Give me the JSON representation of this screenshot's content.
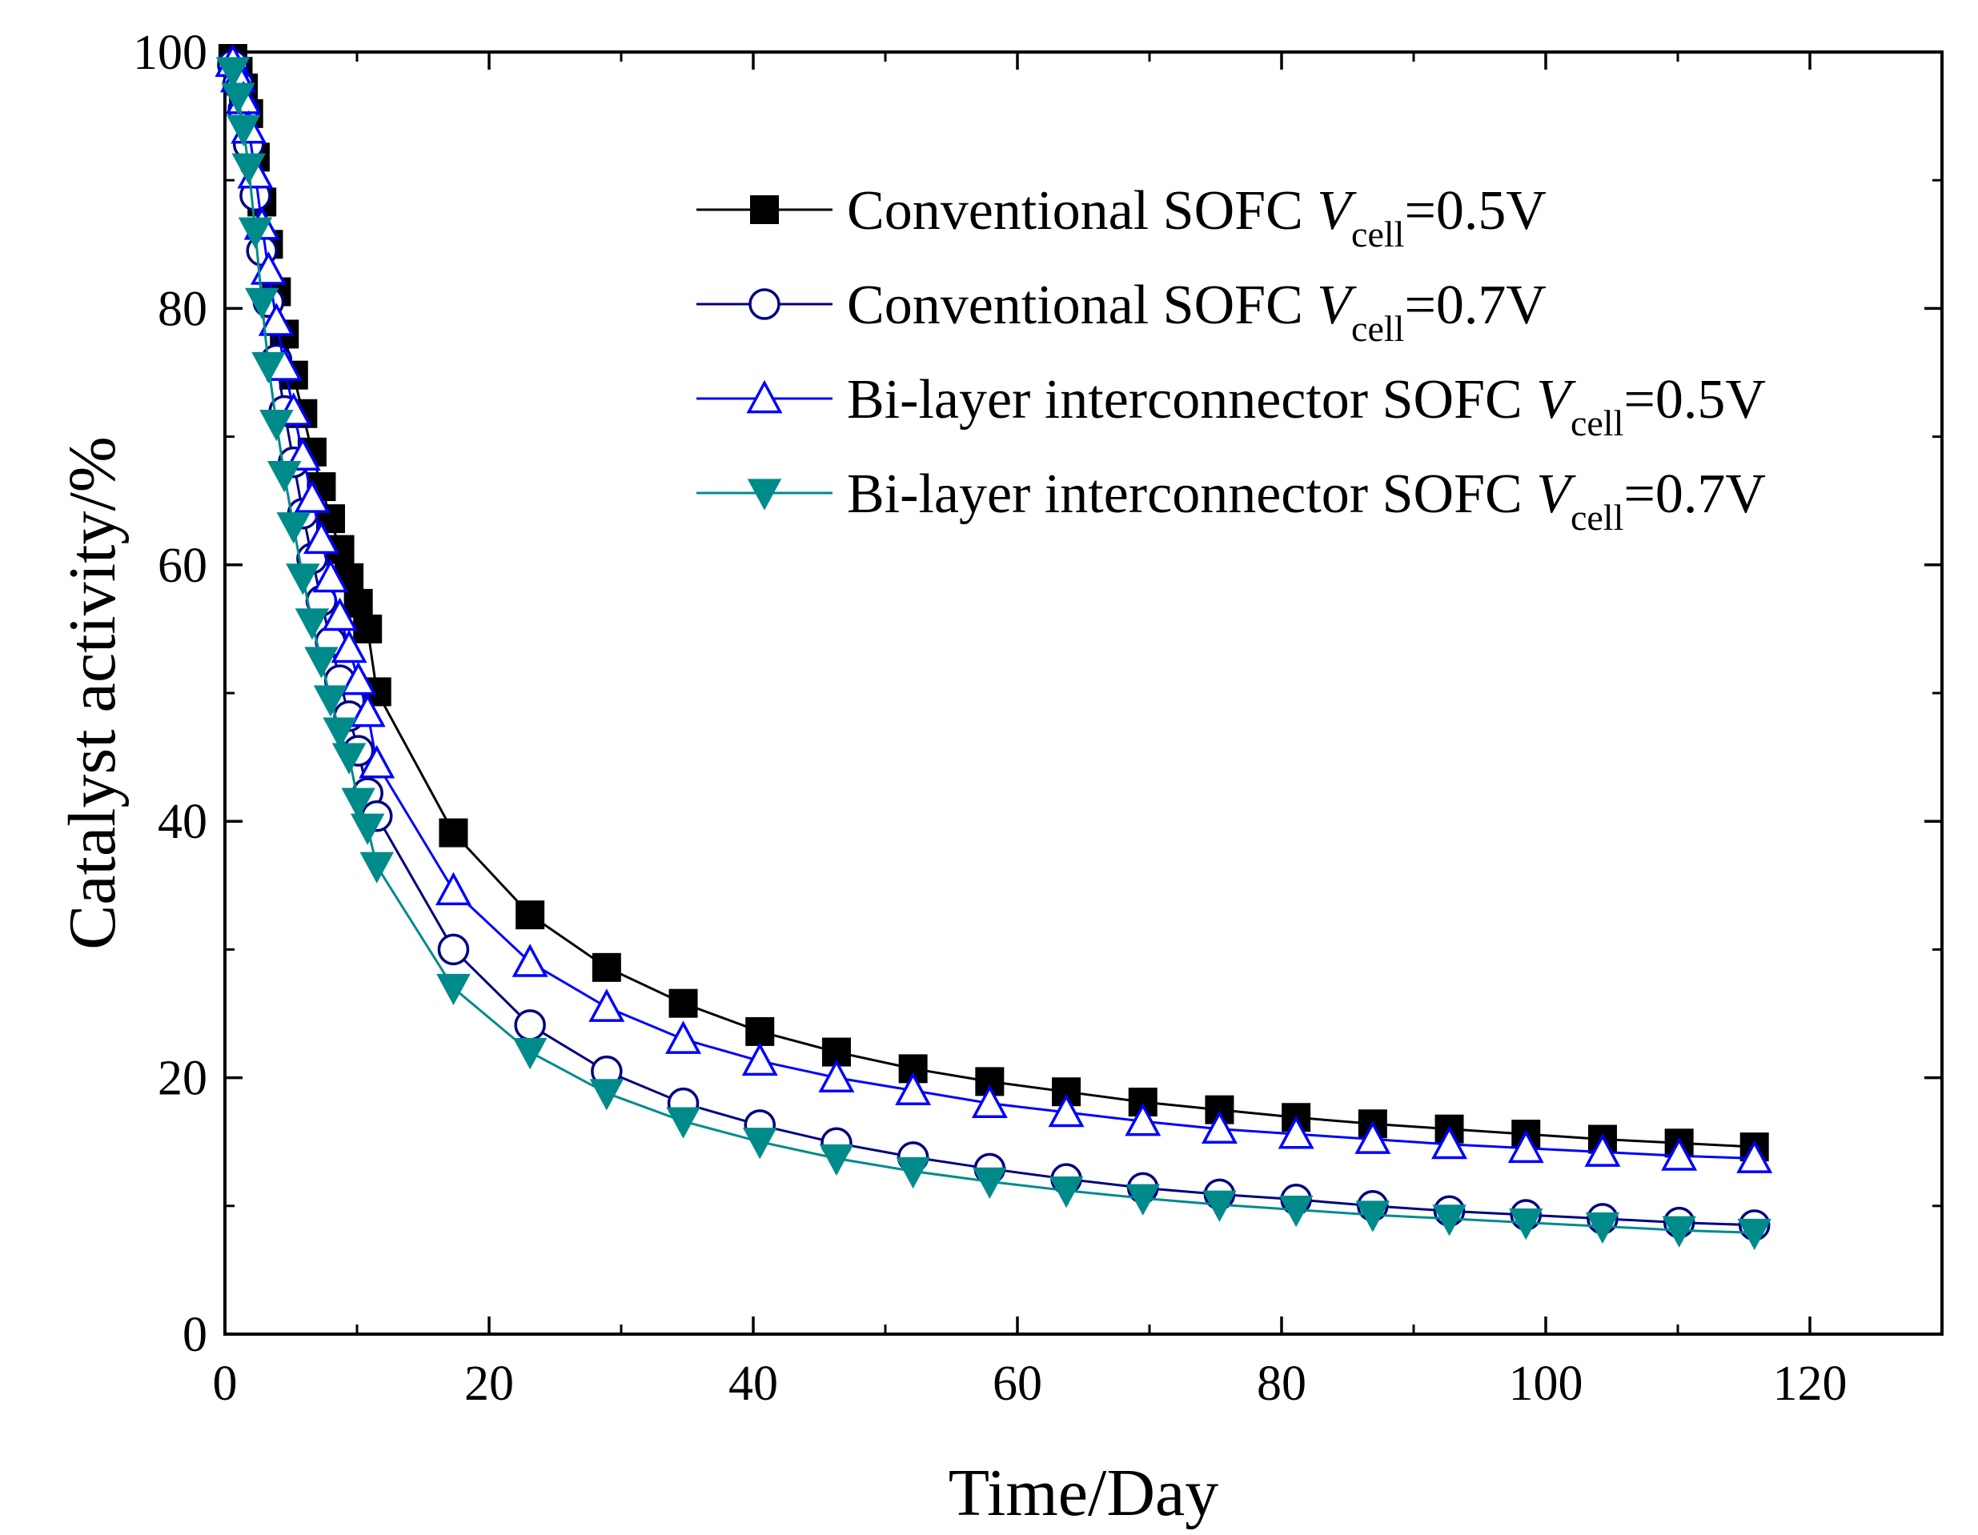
{
  "chart_data": {
    "type": "line",
    "title": "",
    "xlabel": "Time/Day",
    "ylabel": "Catalyst activity/%",
    "xlim": [
      0,
      130
    ],
    "ylim": [
      0,
      100
    ],
    "xticks": [
      0,
      20,
      40,
      60,
      80,
      100,
      120
    ],
    "yticks": [
      0,
      20,
      40,
      60,
      80,
      100
    ],
    "x_minor_step": 10,
    "y_minor_step": 10,
    "grid": false,
    "legend_position": "top-right",
    "series": [
      {
        "name": "Conventional SOFC V_cell=0.5V",
        "legend": {
          "prefix": "Conventional SOFC ",
          "var": "V",
          "sub": "cell",
          "suffix": "=0.5V"
        },
        "marker": "square-filled",
        "color": "#000000",
        "x": [
          0.6,
          1.0,
          1.4,
          1.8,
          2.3,
          2.8,
          3.3,
          3.9,
          4.5,
          5.2,
          5.9,
          6.6,
          7.3,
          8.0,
          8.7,
          9.4,
          10.1,
          10.8,
          11.5,
          17.3,
          23.1,
          28.9,
          34.7,
          40.5,
          46.3,
          52.1,
          57.9,
          63.7,
          69.5,
          75.3,
          81.1,
          86.9,
          92.7,
          98.5,
          104.3,
          110.1,
          115.8
        ],
        "y": [
          99.5,
          98.5,
          97.2,
          95.2,
          91.8,
          88.3,
          85.0,
          81.3,
          78.0,
          74.8,
          71.8,
          68.8,
          66.1,
          63.6,
          61.2,
          59.0,
          57.0,
          55.0,
          50.1,
          39.1,
          32.7,
          28.6,
          25.8,
          23.6,
          22.0,
          20.7,
          19.7,
          18.9,
          18.1,
          17.5,
          16.9,
          16.4,
          16.0,
          15.6,
          15.2,
          14.9,
          14.6
        ]
      },
      {
        "name": "Conventional SOFC V_cell=0.7V",
        "legend": {
          "prefix": "Conventional SOFC ",
          "var": "V",
          "sub": "cell",
          "suffix": "=0.7V"
        },
        "marker": "circle-open",
        "color": "#000080",
        "x": [
          0.6,
          1.0,
          1.4,
          1.8,
          2.3,
          2.8,
          3.3,
          3.9,
          4.5,
          5.2,
          5.9,
          6.6,
          7.3,
          8.0,
          8.7,
          9.4,
          10.1,
          10.8,
          11.5,
          17.3,
          23.1,
          28.9,
          34.7,
          40.5,
          46.3,
          52.1,
          57.9,
          63.7,
          69.5,
          75.3,
          81.1,
          86.9,
          92.7,
          98.5,
          104.3,
          110.1,
          115.8
        ],
        "y": [
          99.0,
          97.5,
          95.5,
          92.8,
          88.8,
          84.5,
          80.5,
          76.0,
          72.0,
          68.0,
          64.0,
          60.5,
          57.2,
          54.0,
          51.0,
          48.2,
          45.5,
          42.2,
          40.4,
          30.0,
          24.1,
          20.5,
          18.0,
          16.3,
          14.9,
          13.8,
          12.9,
          12.1,
          11.4,
          10.9,
          10.5,
          10.0,
          9.6,
          9.3,
          9.0,
          8.7,
          8.5
        ]
      },
      {
        "name": "Bi-layer interconnector SOFC V_cell=0.5V",
        "legend": {
          "prefix": "Bi-layer interconnector SOFC ",
          "var": "V",
          "sub": "cell",
          "suffix": "=0.5V"
        },
        "marker": "triangle-up-open",
        "color": "#0000ff",
        "x": [
          0.6,
          1.0,
          1.4,
          1.8,
          2.3,
          2.8,
          3.3,
          3.9,
          4.5,
          5.2,
          5.9,
          6.6,
          7.3,
          8.0,
          8.7,
          9.4,
          10.1,
          10.8,
          11.5,
          17.3,
          23.1,
          28.9,
          34.7,
          40.5,
          46.3,
          52.1,
          57.9,
          63.7,
          69.5,
          75.3,
          81.1,
          86.9,
          92.7,
          98.5,
          104.3,
          110.1,
          115.8
        ],
        "y": [
          99.2,
          98.0,
          96.3,
          94.0,
          90.5,
          86.5,
          83.0,
          79.0,
          75.5,
          72.0,
          68.5,
          65.2,
          62.0,
          59.0,
          56.0,
          53.5,
          51.0,
          48.5,
          44.5,
          34.6,
          29.0,
          25.5,
          23.0,
          21.3,
          20.0,
          19.0,
          18.0,
          17.3,
          16.6,
          16.0,
          15.6,
          15.2,
          14.8,
          14.5,
          14.2,
          13.9,
          13.7
        ]
      },
      {
        "name": "Bi-layer interconnector SOFC V_cell=0.7V",
        "legend": {
          "prefix": "Bi-layer interconnector SOFC ",
          "var": "V",
          "sub": "cell",
          "suffix": "=0.7V"
        },
        "marker": "triangle-down-filled",
        "color": "#008b8b",
        "x": [
          0.6,
          1.0,
          1.4,
          1.8,
          2.3,
          2.8,
          3.3,
          3.9,
          4.5,
          5.2,
          5.9,
          6.6,
          7.3,
          8.0,
          8.7,
          9.4,
          10.1,
          10.8,
          11.5,
          17.3,
          23.1,
          28.9,
          34.7,
          40.5,
          46.3,
          52.1,
          57.9,
          63.7,
          69.5,
          75.3,
          81.1,
          86.9,
          92.7,
          98.5,
          104.3,
          110.1,
          115.8
        ],
        "y": [
          98.5,
          96.5,
          94.0,
          91.0,
          86.0,
          80.5,
          75.5,
          71.0,
          67.0,
          63.0,
          59.0,
          55.5,
          52.5,
          49.5,
          47.0,
          45.0,
          41.5,
          39.5,
          36.5,
          27.0,
          22.0,
          18.8,
          16.6,
          15.0,
          13.7,
          12.7,
          11.9,
          11.2,
          10.6,
          10.1,
          9.7,
          9.3,
          9.0,
          8.7,
          8.4,
          8.1,
          7.9
        ]
      }
    ]
  }
}
